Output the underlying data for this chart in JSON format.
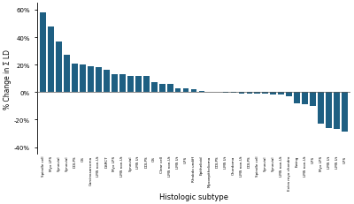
{
  "categories": [
    "Spindle cell",
    "Myx LPS",
    "Synovial",
    "Synovial",
    "DDLPS",
    "OS",
    "Carcinosarcoma",
    "LMS non-Ut",
    "DSRCT",
    "Myx LPS",
    "LMS non-Ut",
    "Synovial",
    "LMS Ut",
    "DDLPS",
    "OS",
    "Clear cell",
    "LMS non-Ut",
    "LMS Ut",
    "UPS",
    "Rhabdo undiff",
    "Epithelioid",
    "Myxoepithelioma",
    "DDLPS",
    "LMS Ut",
    "Chordoma",
    "LMS non-Ut",
    "DDLPS",
    "Spindle cell",
    "Synovial",
    "Synovial",
    "LMS non-Ut",
    "Extra myo chondro",
    "Ewing",
    "LMS non-Ut",
    "UPS",
    "Myx LPS",
    "LMS Ut",
    "LMS Ut",
    "UPS"
  ],
  "values": [
    58,
    48,
    37,
    27,
    21,
    20,
    19,
    18,
    16,
    13,
    13,
    12,
    12,
    12,
    7,
    6,
    6,
    3,
    3,
    2,
    1,
    0.5,
    0,
    -0.5,
    -0.5,
    -1,
    -1,
    -1,
    -1,
    -1.5,
    -2,
    -3,
    -8,
    -9,
    -10,
    -23,
    -26,
    -27,
    -29
  ],
  "bar_color": "#1e5f82",
  "ylabel": "% Change in Σ LD",
  "xlabel": "Histologic subtype",
  "ylim": [
    -45,
    65
  ],
  "yticks": [
    -40,
    -20,
    0,
    20,
    40,
    60
  ],
  "ytick_labels": [
    "-40%",
    "-20%",
    "0%",
    "20%",
    "40%",
    "60%"
  ],
  "background_color": "#ffffff"
}
